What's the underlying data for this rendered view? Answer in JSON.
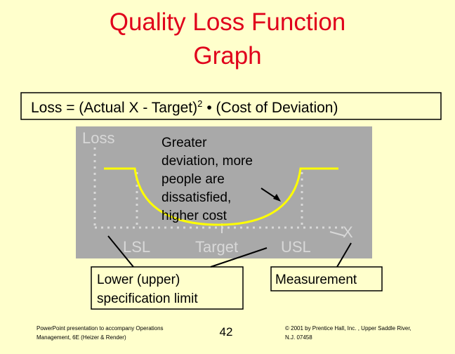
{
  "title": {
    "lines": [
      "Quality Loss Function",
      "Graph"
    ]
  },
  "formula": {
    "main": "Loss = (Actual X - Target)",
    "superscript": "2",
    "rest": "• (Cost of Deviation)"
  },
  "graph": {
    "y_label": "Loss",
    "x_label": "X",
    "labels": [
      "LSL",
      "Target",
      "USL"
    ],
    "annotation": [
      "Greater",
      "deviation, more",
      "people are",
      "dissatisfied,",
      "higher cost"
    ]
  },
  "callouts": {
    "spec_limit": [
      "Lower (upper)",
      "specification limit"
    ],
    "measurement": "Measurement"
  },
  "footer": {
    "left": [
      "PowerPoint presentation to accompany Operations",
      "Management, 6E (Heizer & Render)"
    ],
    "page": "42",
    "right": [
      "© 2001 by Prentice Hall, Inc. , Upper Saddle River,",
      "N.J. 07458"
    ]
  }
}
